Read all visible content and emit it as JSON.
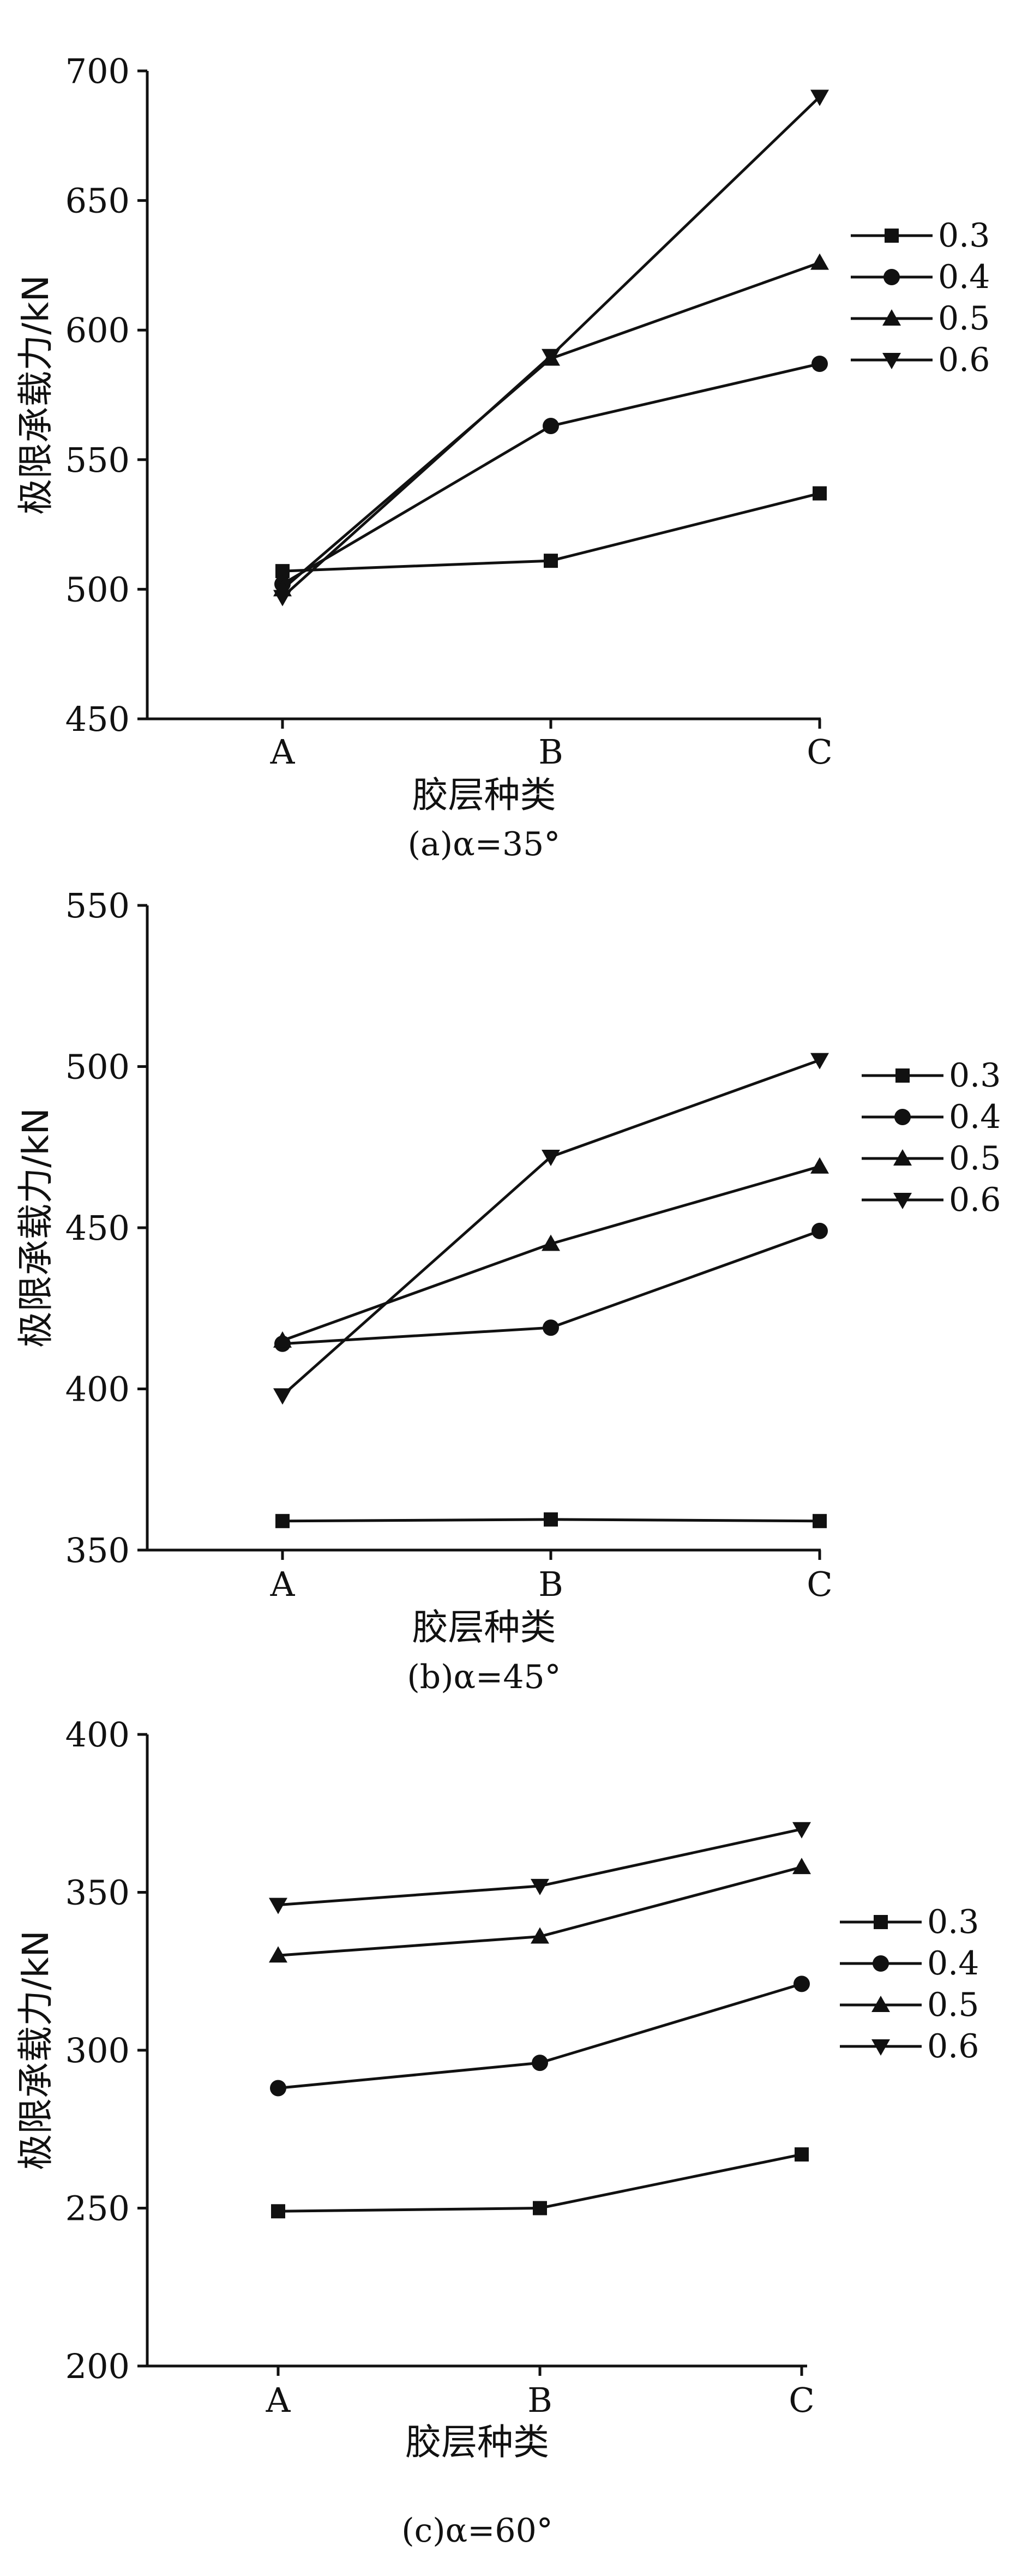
{
  "chart_data": [
    {
      "type": "line",
      "caption": "(a)α=35°",
      "xlabel": "胶层种类",
      "ylabel": "极限承载力/kN",
      "categories": [
        "A",
        "B",
        "C"
      ],
      "ylim": [
        450,
        700
      ],
      "yticks": [
        450,
        500,
        550,
        600,
        650,
        700
      ],
      "legend_position": "right",
      "series": [
        {
          "name": "0.3",
          "marker": "square",
          "values": [
            507,
            511,
            537
          ]
        },
        {
          "name": "0.4",
          "marker": "circle",
          "values": [
            502,
            563,
            587
          ]
        },
        {
          "name": "0.5",
          "marker": "triangle-up",
          "values": [
            500,
            589,
            626
          ]
        },
        {
          "name": "0.6",
          "marker": "triangle-down",
          "values": [
            497,
            590,
            690
          ]
        }
      ]
    },
    {
      "type": "line",
      "caption": "(b)α=45°",
      "xlabel": "胶层种类",
      "ylabel": "极限承载力/kN",
      "categories": [
        "A",
        "B",
        "C"
      ],
      "ylim": [
        350,
        550
      ],
      "yticks": [
        350,
        400,
        450,
        500,
        550
      ],
      "legend_position": "right",
      "series": [
        {
          "name": "0.3",
          "marker": "square",
          "values": [
            359,
            359.5,
            359
          ]
        },
        {
          "name": "0.4",
          "marker": "circle",
          "values": [
            414,
            419,
            449
          ]
        },
        {
          "name": "0.5",
          "marker": "triangle-up",
          "values": [
            415,
            445,
            469
          ]
        },
        {
          "name": "0.6",
          "marker": "triangle-down",
          "values": [
            398,
            472,
            502
          ]
        }
      ]
    },
    {
      "type": "line",
      "caption": "(c)α=60°",
      "xlabel": "胶层种类",
      "ylabel": "极限承载力/kN",
      "categories": [
        "A",
        "B",
        "C"
      ],
      "ylim": [
        200,
        400
      ],
      "yticks": [
        200,
        250,
        300,
        350,
        400
      ],
      "legend_position": "right",
      "series": [
        {
          "name": "0.3",
          "marker": "square",
          "values": [
            249,
            250,
            267
          ]
        },
        {
          "name": "0.4",
          "marker": "circle",
          "values": [
            288,
            296,
            321
          ]
        },
        {
          "name": "0.5",
          "marker": "triangle-up",
          "values": [
            330,
            336,
            358
          ]
        },
        {
          "name": "0.6",
          "marker": "triangle-down",
          "values": [
            346,
            352,
            370
          ]
        }
      ]
    }
  ]
}
